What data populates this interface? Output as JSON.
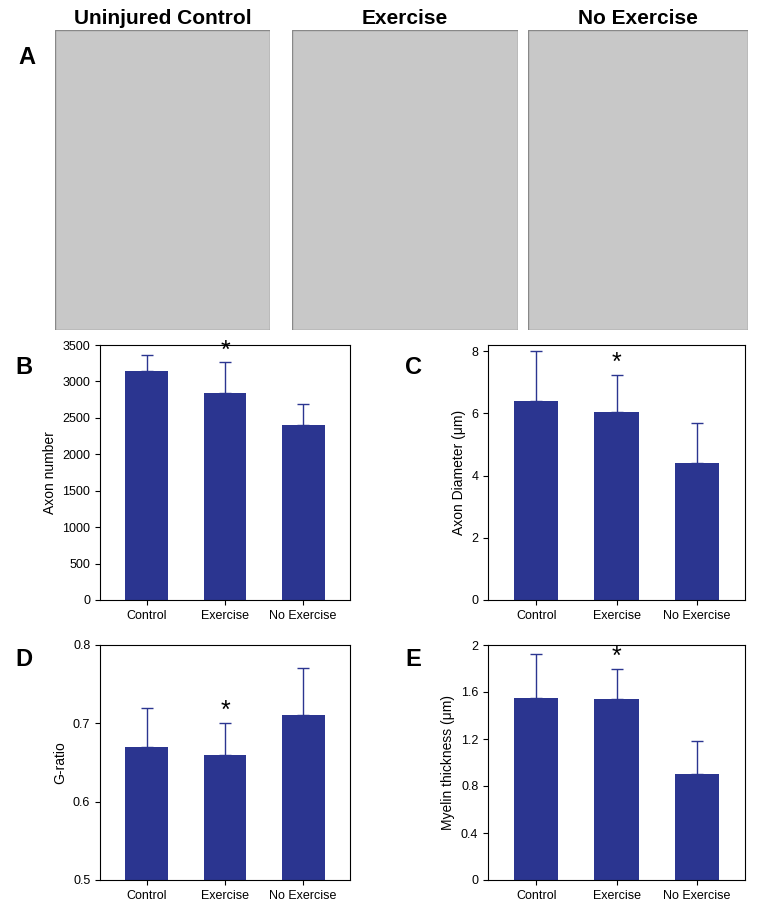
{
  "micrographs": {
    "panel": "A",
    "titles": [
      "Uninjured Control",
      "Exercise",
      "No Exercise"
    ]
  },
  "chart_data": [
    {
      "type": "bar",
      "panel": "B",
      "y_label": "Axon number",
      "categories": [
        "Control",
        "Exercise",
        "No Exercise"
      ],
      "values": [
        3150,
        2840,
        2400
      ],
      "errors": [
        210,
        420,
        290
      ],
      "significance": [
        null,
        "*",
        null
      ],
      "color": "#2b3590",
      "ylim": [
        0,
        3500
      ],
      "yticks": [
        0,
        500,
        1000,
        1500,
        2000,
        2500,
        3000,
        3500
      ]
    },
    {
      "type": "bar",
      "panel": "C",
      "y_label": "Axon Diameter (μm)",
      "categories": [
        "Control",
        "Exercise",
        "No Exercise"
      ],
      "values": [
        6.4,
        6.05,
        4.4
      ],
      "errors": [
        1.6,
        1.2,
        1.3
      ],
      "significance": [
        null,
        "*",
        null
      ],
      "color": "#2b3590",
      "ylim": [
        0,
        8.2
      ],
      "yticks": [
        0,
        2,
        4,
        6,
        8
      ]
    },
    {
      "type": "bar",
      "panel": "D",
      "y_label": "G-ratio",
      "categories": [
        "Control",
        "Exercise",
        "No Exercise"
      ],
      "values": [
        0.67,
        0.66,
        0.71
      ],
      "errors": [
        0.05,
        0.04,
        0.06
      ],
      "significance": [
        null,
        "*",
        null
      ],
      "color": "#2b3590",
      "ylim": [
        0.5,
        0.8
      ],
      "yticks": [
        0.5,
        0.6,
        0.7,
        0.8
      ]
    },
    {
      "type": "bar",
      "panel": "E",
      "y_label": "Myelin thickness (μm)",
      "categories": [
        "Control",
        "Exercise",
        "No Exercise"
      ],
      "values": [
        1.55,
        1.54,
        0.9
      ],
      "errors": [
        0.37,
        0.26,
        0.28
      ],
      "significance": [
        null,
        "*",
        null
      ],
      "color": "#2b3590",
      "ylim": [
        0,
        2
      ],
      "yticks": [
        0,
        0.4,
        0.8,
        1.2,
        1.6,
        2
      ]
    }
  ]
}
